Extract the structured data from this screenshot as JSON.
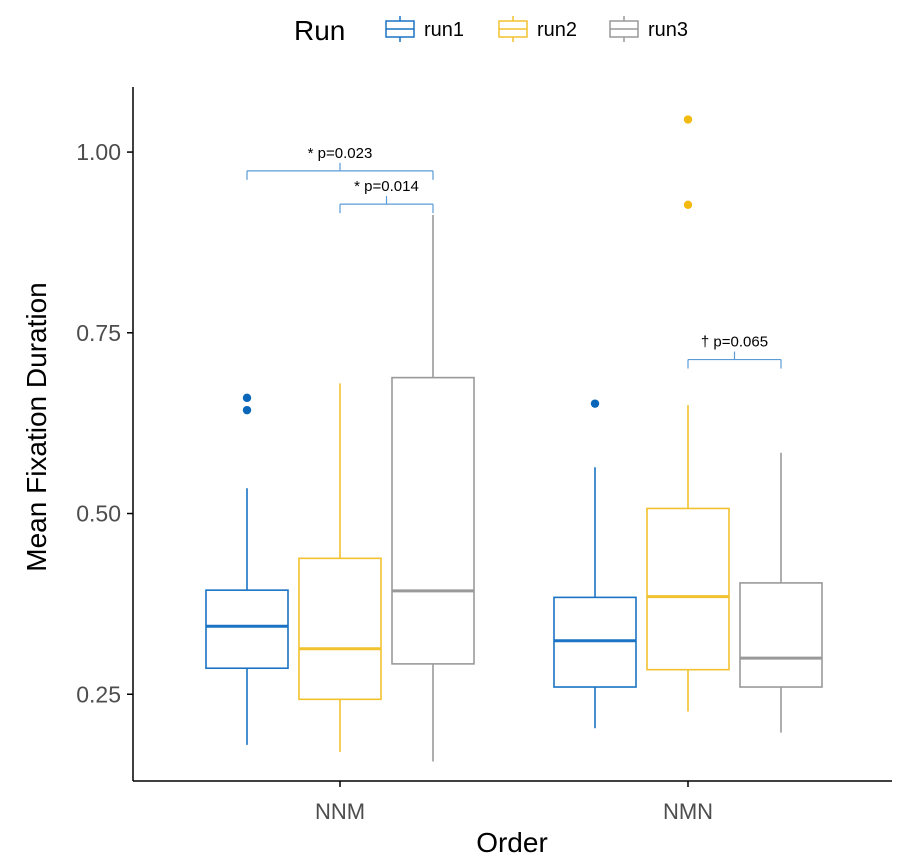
{
  "chart_data": {
    "type": "box",
    "xlabel": "Order",
    "ylabel": "Mean Fixation Duration",
    "ylim": [
      0.13,
      1.09
    ],
    "yticks": [
      0.25,
      0.5,
      0.75,
      1.0
    ],
    "ytick_labels": [
      "0.25",
      "0.50",
      "0.75",
      "1.00"
    ],
    "categories": [
      "NNM",
      "NMN"
    ],
    "legend": {
      "title": "Run",
      "position": "top",
      "entries": [
        {
          "label": "run1",
          "color": "#1a73c4"
        },
        {
          "label": "run2",
          "color": "#f2c12e"
        },
        {
          "label": "run3",
          "color": "#999999"
        }
      ]
    },
    "series": [
      {
        "name": "run1",
        "color": "#1a73c4",
        "outlier_color": "#0a66b8",
        "boxes": [
          {
            "category": "NNM",
            "whisker_low": 0.18,
            "q1": 0.286,
            "median": 0.344,
            "q3": 0.394,
            "whisker_high": 0.535,
            "outliers": [
              0.66,
              0.643
            ]
          },
          {
            "category": "NMN",
            "whisker_low": 0.203,
            "q1": 0.26,
            "median": 0.324,
            "q3": 0.384,
            "whisker_high": 0.564,
            "outliers": [
              0.652
            ]
          }
        ]
      },
      {
        "name": "run2",
        "color": "#f2c12e",
        "outlier_color": "#f2b90f",
        "boxes": [
          {
            "category": "NNM",
            "whisker_low": 0.17,
            "q1": 0.243,
            "median": 0.313,
            "q3": 0.438,
            "whisker_high": 0.68,
            "outliers": []
          },
          {
            "category": "NMN",
            "whisker_low": 0.226,
            "q1": 0.284,
            "median": 0.385,
            "q3": 0.507,
            "whisker_high": 0.65,
            "outliers": [
              1.045,
              0.927
            ]
          }
        ]
      },
      {
        "name": "run3",
        "color": "#999999",
        "outlier_color": "#999999",
        "boxes": [
          {
            "category": "NNM",
            "whisker_low": 0.157,
            "q1": 0.292,
            "median": 0.393,
            "q3": 0.688,
            "whisker_high": 0.913,
            "outliers": []
          },
          {
            "category": "NMN",
            "whisker_low": 0.197,
            "q1": 0.26,
            "median": 0.3,
            "q3": 0.404,
            "whisker_high": 0.584,
            "outliers": []
          }
        ]
      }
    ],
    "annotations": [
      {
        "text": "* p=0.023",
        "category": "NNM",
        "from_series": 0,
        "to_series": 2,
        "y": 0.974
      },
      {
        "text": "* p=0.014",
        "category": "NNM",
        "from_series": 1,
        "to_series": 2,
        "y": 0.928
      },
      {
        "text": "† p=0.065",
        "category": "NMN",
        "from_series": 1,
        "to_series": 2,
        "y": 0.713
      }
    ],
    "annotation_color": "#5b9bd5",
    "axis_color": "#000000",
    "grid": false
  }
}
